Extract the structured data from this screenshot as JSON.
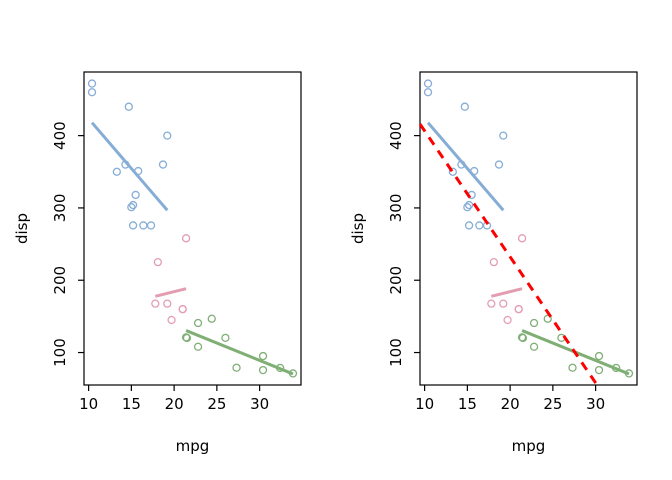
{
  "chart_data": {
    "type": "scatter",
    "title": "",
    "xlabel": "mpg",
    "ylabel": "disp",
    "xlim": [
      9.46,
      34.84
    ],
    "ylim": [
      55.1,
      488.0
    ],
    "x_ticks": [
      10,
      15,
      20,
      25,
      30
    ],
    "y_ticks": [
      100,
      200,
      300,
      400
    ],
    "marker": "open-circle",
    "grid": false,
    "background": "#ffffff",
    "axis_color": "#000000",
    "panels": [
      {
        "name": "left",
        "show_overall_line": false
      },
      {
        "name": "right",
        "show_overall_line": true
      }
    ],
    "series": [
      {
        "name": "group-blue",
        "color": "#86ADD6",
        "points": [
          [
            18.7,
            360
          ],
          [
            14.3,
            360
          ],
          [
            16.4,
            275.8
          ],
          [
            17.3,
            275.8
          ],
          [
            15.2,
            275.8
          ],
          [
            10.4,
            472
          ],
          [
            10.4,
            460
          ],
          [
            14.7,
            440
          ],
          [
            15.5,
            318
          ],
          [
            15.2,
            304
          ],
          [
            13.3,
            350
          ],
          [
            19.2,
            400
          ],
          [
            15.8,
            351
          ],
          [
            15.0,
            301
          ]
        ]
      },
      {
        "name": "group-pink",
        "color": "#E29DB1",
        "points": [
          [
            21.0,
            160
          ],
          [
            21.0,
            160
          ],
          [
            21.4,
            258
          ],
          [
            18.1,
            225
          ],
          [
            19.2,
            167.6
          ],
          [
            17.8,
            167.6
          ],
          [
            19.7,
            145
          ]
        ]
      },
      {
        "name": "group-green",
        "color": "#7FAF75",
        "points": [
          [
            22.8,
            108
          ],
          [
            24.4,
            146.7
          ],
          [
            22.8,
            140.8
          ],
          [
            32.4,
            78.7
          ],
          [
            30.4,
            75.7
          ],
          [
            33.9,
            71.1
          ],
          [
            21.5,
            120.1
          ],
          [
            27.3,
            79
          ],
          [
            26.0,
            120.3
          ],
          [
            30.4,
            95.1
          ],
          [
            21.4,
            121
          ]
        ]
      }
    ],
    "group_fit_lines": [
      {
        "series": "group-blue",
        "color": "#86ADD6",
        "x1": 10.4,
        "y1": 417.9,
        "x2": 19.2,
        "y2": 296.8
      },
      {
        "series": "group-pink",
        "color": "#E29DB1",
        "x1": 17.8,
        "y1": 177.7,
        "x2": 21.4,
        "y2": 188.3
      },
      {
        "series": "group-green",
        "color": "#7FAF75",
        "x1": 21.4,
        "y1": 130.4,
        "x2": 33.9,
        "y2": 70.4
      }
    ],
    "overall_fit_line": {
      "color": "#FF0000",
      "style": "dashed",
      "x1": 9.46,
      "y1": 416.0,
      "x2": 30.17,
      "y2": 55.1
    }
  }
}
